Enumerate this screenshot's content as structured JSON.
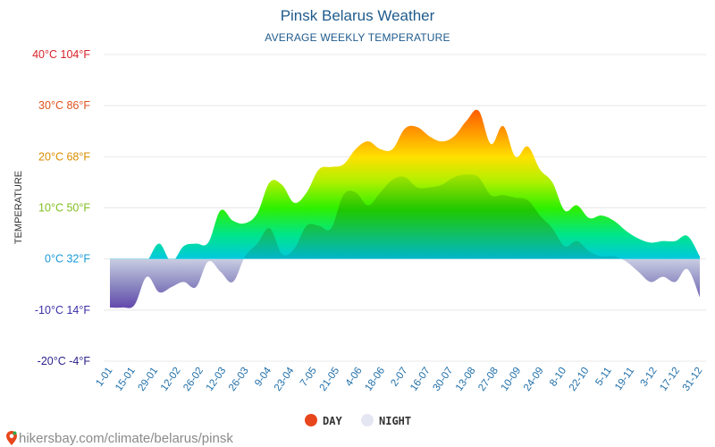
{
  "chart_data": {
    "type": "area",
    "title": "Pinsk Belarus Weather",
    "subtitle": "AVERAGE WEEKLY TEMPERATURE",
    "ylabel": "TEMPERATURE",
    "xlabel": "",
    "ylim": [
      -20,
      40
    ],
    "y_ticks": [
      {
        "value": 40,
        "label": "40°C 104°F",
        "color": "#d8232a"
      },
      {
        "value": 30,
        "label": "30°C 86°F",
        "color": "#e0531f"
      },
      {
        "value": 20,
        "label": "20°C 68°F",
        "color": "#d98f00"
      },
      {
        "value": 10,
        "label": "10°C 50°F",
        "color": "#7fbf1e"
      },
      {
        "value": 0,
        "label": "0°C 32°F",
        "color": "#1a9ad6"
      },
      {
        "value": -10,
        "label": "-10°C 14°F",
        "color": "#3a2fa8"
      },
      {
        "value": -20,
        "label": "-20°C -4°F",
        "color": "#2a1f8a"
      }
    ],
    "x_tick_labels": [
      "1-01",
      "15-01",
      "29-01",
      "12-02",
      "26-02",
      "12-03",
      "26-03",
      "9-04",
      "23-04",
      "7-05",
      "21-05",
      "4-06",
      "18-06",
      "2-07",
      "16-07",
      "30-07",
      "13-08",
      "27-08",
      "10-09",
      "24-09",
      "8-10",
      "22-10",
      "5-11",
      "19-11",
      "3-12",
      "17-12",
      "31-12"
    ],
    "series": [
      {
        "name": "DAY",
        "color": "#e8461c",
        "values": [
          -2.8,
          -2,
          -2,
          -0.5,
          3,
          -0.5,
          2.5,
          3,
          3.2,
          9.5,
          7.5,
          7,
          9,
          15,
          14.5,
          11,
          13,
          17.5,
          18,
          18.5,
          21.5,
          23,
          21.5,
          21.5,
          25.5,
          25.8,
          24,
          23,
          24,
          27,
          29,
          22.5,
          26,
          20,
          22,
          17.5,
          15,
          9.5,
          10.5,
          8,
          8.5,
          7.5,
          5.5,
          4,
          3.2,
          3.5,
          3.5,
          4.5,
          0.5
        ]
      },
      {
        "name": "NIGHT",
        "color": "#e4e7f2",
        "values": [
          -9.5,
          -9.5,
          -9,
          -3.5,
          -6.5,
          -5.5,
          -4.5,
          -5.5,
          -0.5,
          -2.5,
          -4.5,
          0.5,
          3,
          6,
          1,
          2,
          6.5,
          6.5,
          6,
          12.5,
          13,
          10.5,
          13,
          15.5,
          16,
          14,
          14,
          14.5,
          16,
          16.5,
          16,
          12.5,
          12.5,
          12,
          11.5,
          8.5,
          6,
          2.5,
          3.5,
          1.5,
          0.5,
          0.5,
          -0.5,
          -2.5,
          -4.5,
          -3.5,
          -4.5,
          -2,
          -7.5
        ]
      }
    ],
    "legend_position": "bottom-center",
    "grid": true
  },
  "source": "hikersbay.com/climate/belarus/pinsk",
  "colors": {
    "title": "#1f5b8c",
    "source": "#8a8a8a",
    "night_mark": "#e4e7f2"
  },
  "icons": {
    "source_icon": "map-pin-icon"
  }
}
